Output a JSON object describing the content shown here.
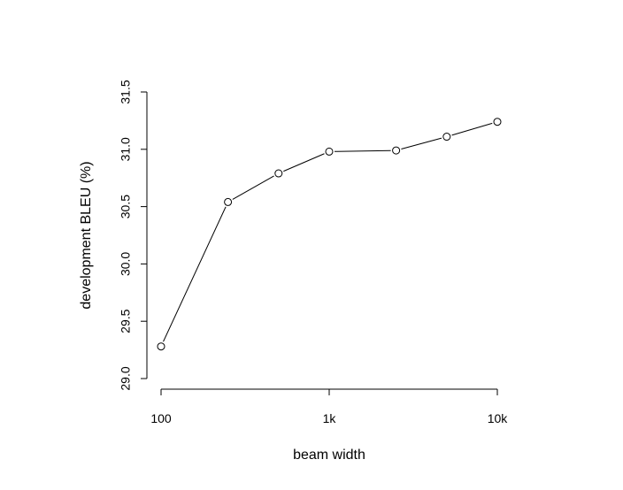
{
  "chart_data": {
    "type": "line",
    "xlabel": "beam width",
    "ylabel": "development BLEU (%)",
    "x_scale": "log",
    "xlim": [
      100,
      10000
    ],
    "ylim": [
      29.0,
      31.5
    ],
    "x_ticks": [
      {
        "value": 100,
        "label": "100"
      },
      {
        "value": 1000,
        "label": "1k"
      },
      {
        "value": 10000,
        "label": "10k"
      }
    ],
    "y_ticks": [
      {
        "value": 29.0,
        "label": "29.0"
      },
      {
        "value": 29.5,
        "label": "29.5"
      },
      {
        "value": 30.0,
        "label": "30.0"
      },
      {
        "value": 30.5,
        "label": "30.5"
      },
      {
        "value": 31.0,
        "label": "31.0"
      },
      {
        "value": 31.5,
        "label": "31.5"
      }
    ],
    "grid": false,
    "marker": "open-circle",
    "series": [
      {
        "x": [
          100,
          250,
          500,
          1000,
          2500,
          5000,
          10000
        ],
        "y": [
          29.28,
          30.54,
          30.79,
          30.98,
          30.99,
          31.11,
          31.24
        ]
      }
    ]
  }
}
